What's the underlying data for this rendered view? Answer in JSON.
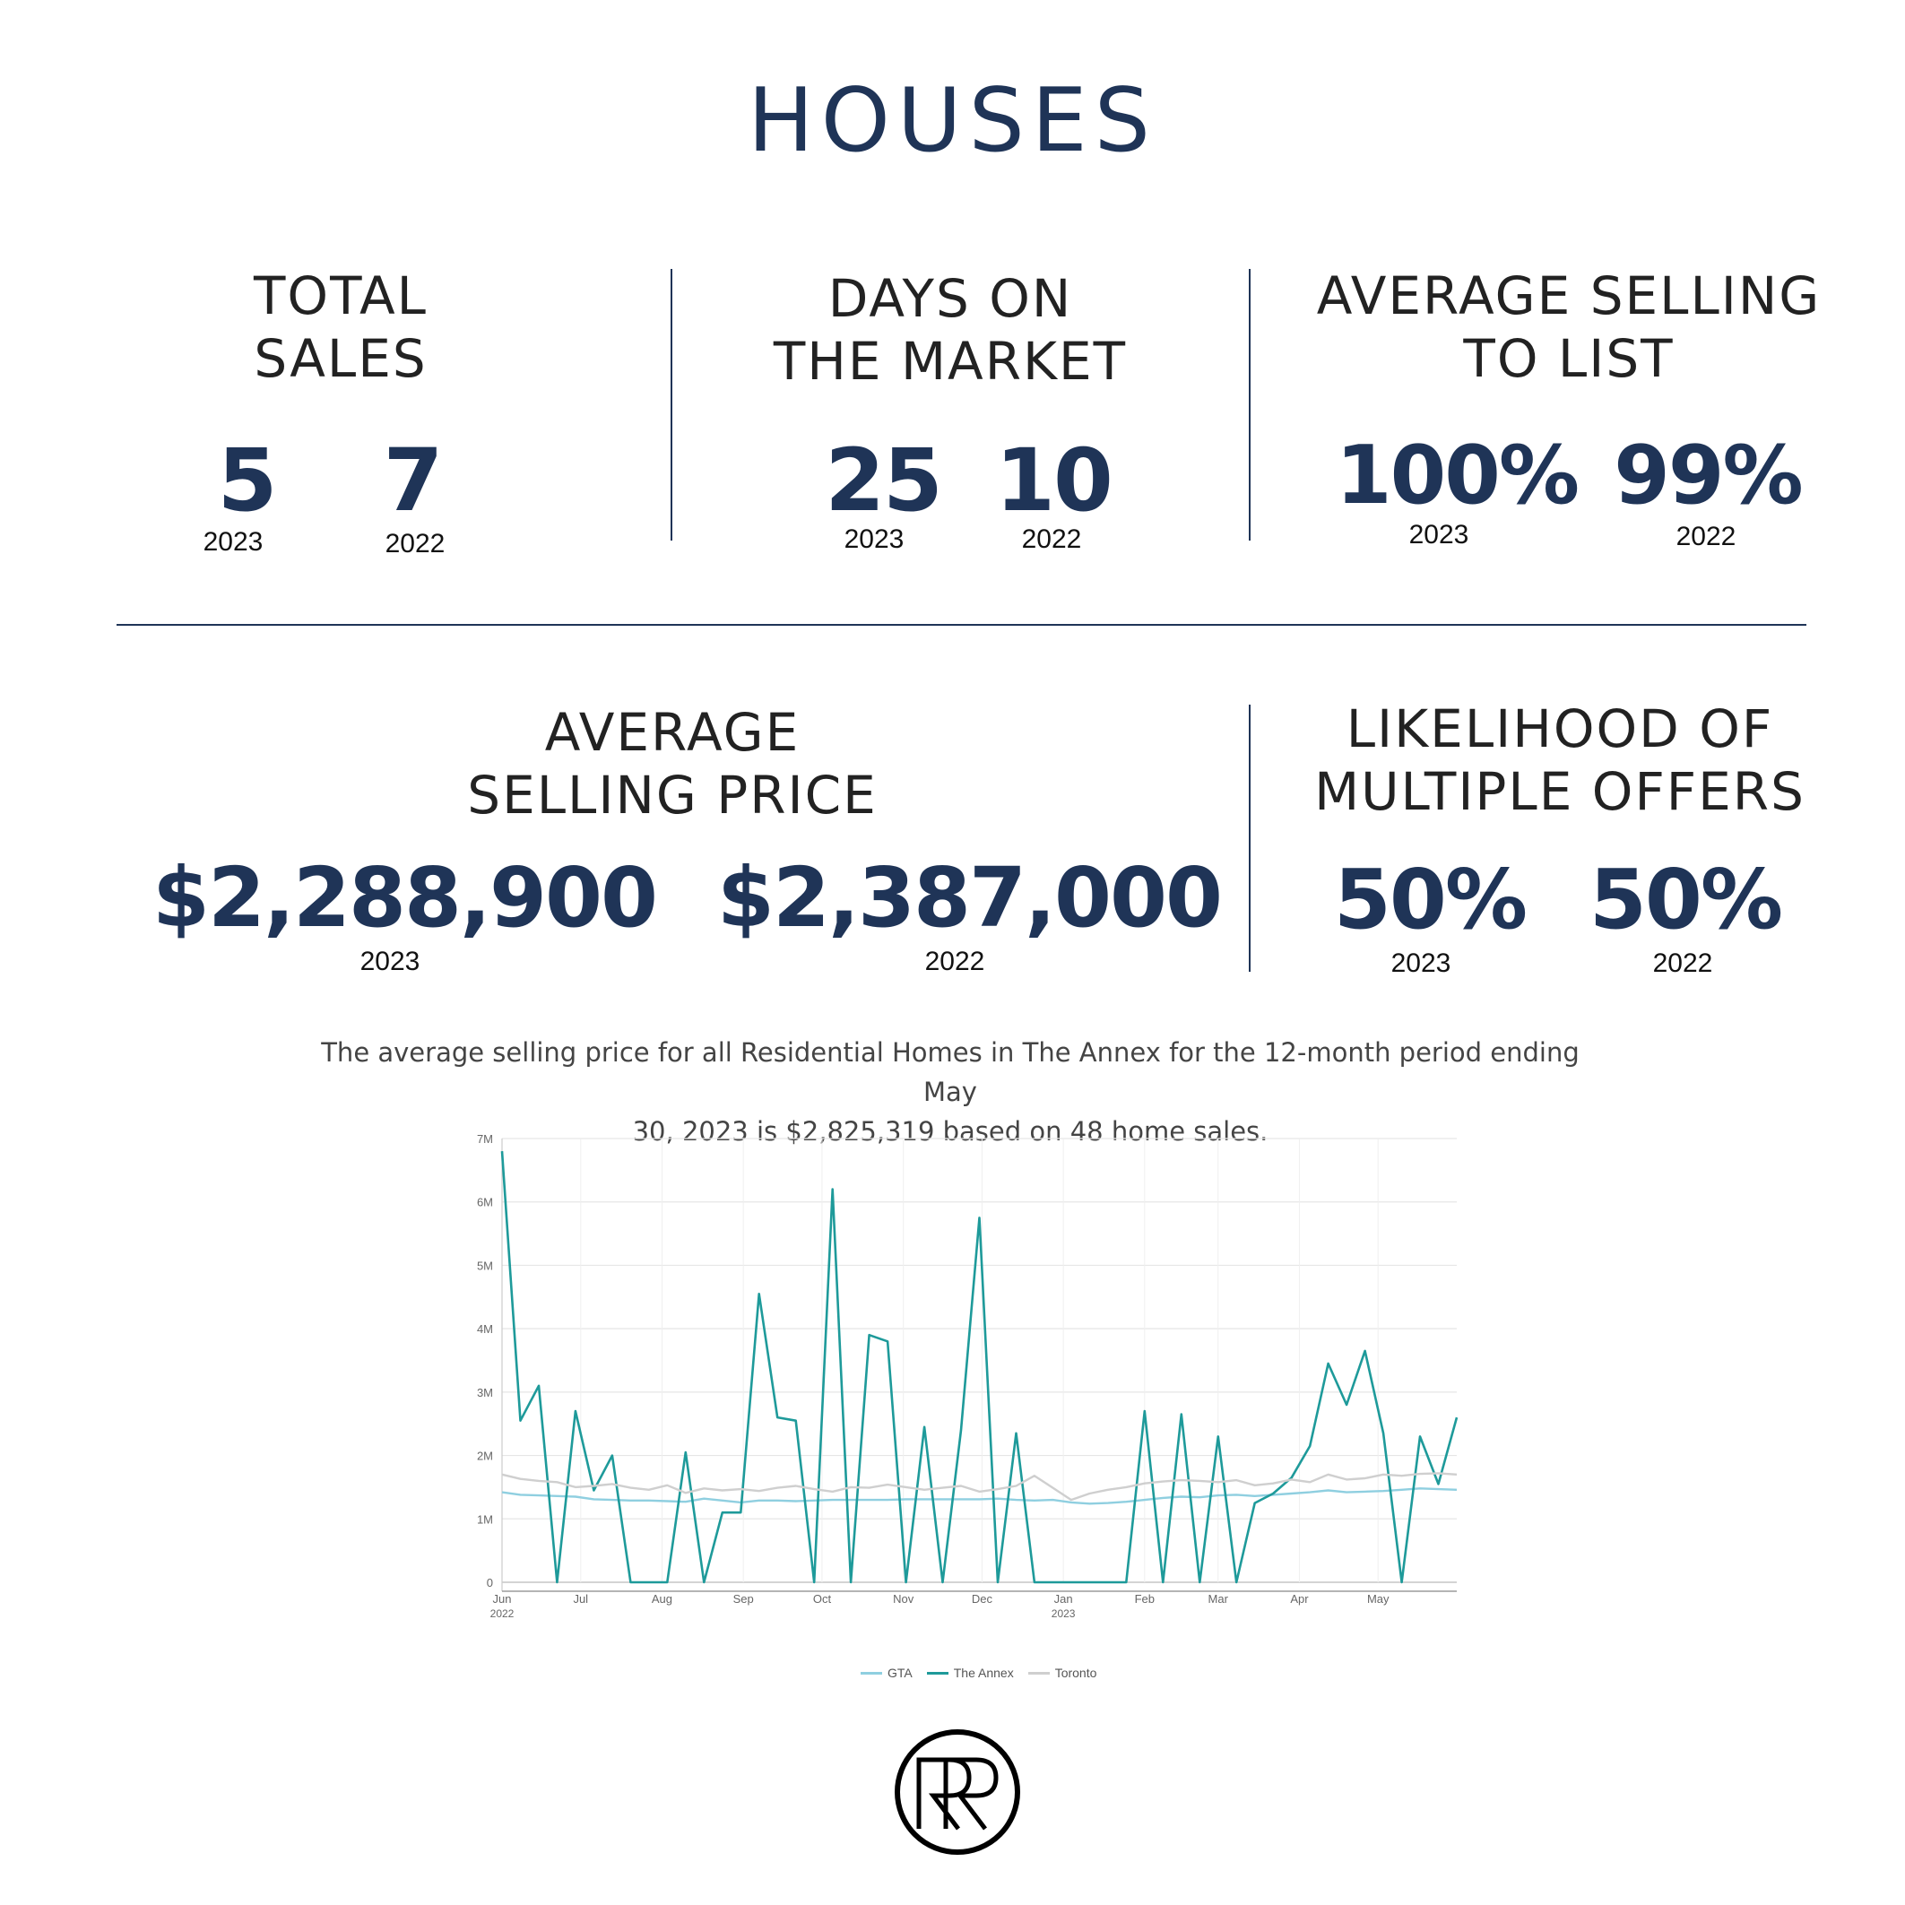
{
  "title": "HOUSES",
  "stats": {
    "total_sales": {
      "label_l1": "TOTAL",
      "label_l2": "SALES",
      "v2023": "5",
      "v2022": "7",
      "y1": "2023",
      "y2": "2022"
    },
    "days_on_market": {
      "label_l1": "DAYS ON",
      "label_l2": "THE MARKET",
      "v2023": "25",
      "v2022": "10",
      "y1": "2023",
      "y2": "2022"
    },
    "avg_selling_to_list": {
      "label_l1": "AVERAGE SELLING",
      "label_l2": "TO LIST",
      "v2023": "100%",
      "v2022": "99%",
      "y1": "2023",
      "y2": "2022"
    },
    "avg_selling_price": {
      "label_l1": "AVERAGE",
      "label_l2": "SELLING PRICE",
      "v2023": "$2,288,900",
      "v2022": "$2,387,000",
      "y1": "2023",
      "y2": "2022"
    },
    "multiple_offers": {
      "label_l1": "LIKELIHOOD OF",
      "label_l2": "MULTIPLE OFFERS",
      "v2023": "50%",
      "v2022": "50%",
      "y1": "2023",
      "y2": "2022"
    }
  },
  "caption": {
    "line1": "The average selling price for all Residential Homes in The Annex for the 12-month period ending May",
    "line2": "30, 2023 is $2,825,319 based on 48 home sales."
  },
  "chart_data": {
    "type": "line",
    "title": "",
    "xlabel": "",
    "ylabel": "",
    "ylim": [
      0,
      7000000
    ],
    "yticks": [
      0,
      1000000,
      2000000,
      3000000,
      4000000,
      5000000,
      6000000,
      7000000
    ],
    "ytick_labels": [
      "0",
      "1M",
      "2M",
      "3M",
      "4M",
      "5M",
      "6M",
      "7M"
    ],
    "xlim": [
      "2022-06-01",
      "2023-05-31"
    ],
    "xticks": [
      "2022-06-01",
      "2022-07-01",
      "2022-08-01",
      "2022-09-01",
      "2022-10-01",
      "2022-11-01",
      "2022-12-01",
      "2023-01-01",
      "2023-02-01",
      "2023-03-01",
      "2023-04-01",
      "2023-05-01"
    ],
    "xtick_labels": [
      "Jun",
      "Jul",
      "Aug",
      "Sep",
      "Oct",
      "Nov",
      "Dec",
      "Jan",
      "Feb",
      "Mar",
      "Apr",
      "May"
    ],
    "xtick_sublabels": {
      "2022-06-01": "2022",
      "2023-01-01": "2023"
    },
    "grid": true,
    "legend_position": "bottom",
    "series": [
      {
        "name": "GTA",
        "color": "#8fcfe0",
        "x": [
          "2022-06-01",
          "2022-06-08",
          "2022-06-15",
          "2022-06-22",
          "2022-06-29",
          "2022-07-06",
          "2022-07-13",
          "2022-07-20",
          "2022-07-27",
          "2022-08-03",
          "2022-08-10",
          "2022-08-17",
          "2022-08-24",
          "2022-08-31",
          "2022-09-07",
          "2022-09-14",
          "2022-09-21",
          "2022-09-28",
          "2022-10-05",
          "2022-10-12",
          "2022-10-19",
          "2022-10-26",
          "2022-11-02",
          "2022-11-09",
          "2022-11-16",
          "2022-11-23",
          "2022-11-30",
          "2022-12-07",
          "2022-12-14",
          "2022-12-21",
          "2022-12-28",
          "2023-01-04",
          "2023-01-11",
          "2023-01-18",
          "2023-01-25",
          "2023-02-01",
          "2023-02-08",
          "2023-02-15",
          "2023-02-22",
          "2023-03-01",
          "2023-03-08",
          "2023-03-15",
          "2023-03-22",
          "2023-03-29",
          "2023-04-05",
          "2023-04-12",
          "2023-04-19",
          "2023-04-26",
          "2023-05-03",
          "2023-05-10",
          "2023-05-17",
          "2023-05-24",
          "2023-05-31"
        ],
        "y": [
          1420000,
          1380000,
          1370000,
          1360000,
          1350000,
          1310000,
          1300000,
          1290000,
          1290000,
          1280000,
          1270000,
          1320000,
          1290000,
          1260000,
          1290000,
          1290000,
          1280000,
          1290000,
          1300000,
          1300000,
          1300000,
          1300000,
          1310000,
          1310000,
          1310000,
          1310000,
          1310000,
          1320000,
          1300000,
          1290000,
          1300000,
          1260000,
          1240000,
          1250000,
          1270000,
          1300000,
          1330000,
          1350000,
          1340000,
          1370000,
          1380000,
          1360000,
          1380000,
          1400000,
          1420000,
          1450000,
          1420000,
          1430000,
          1440000,
          1460000,
          1480000,
          1470000,
          1460000
        ]
      },
      {
        "name": "The Annex",
        "color": "#1e9a9a",
        "x": [
          "2022-06-01",
          "2022-06-08",
          "2022-06-15",
          "2022-06-22",
          "2022-06-29",
          "2022-07-06",
          "2022-07-13",
          "2022-07-20",
          "2022-07-27",
          "2022-08-03",
          "2022-08-10",
          "2022-08-17",
          "2022-08-24",
          "2022-08-31",
          "2022-09-07",
          "2022-09-14",
          "2022-09-21",
          "2022-09-28",
          "2022-10-05",
          "2022-10-12",
          "2022-10-19",
          "2022-10-26",
          "2022-11-02",
          "2022-11-09",
          "2022-11-16",
          "2022-11-23",
          "2022-11-30",
          "2022-12-07",
          "2022-12-14",
          "2022-12-21",
          "2022-12-28",
          "2023-01-04",
          "2023-01-11",
          "2023-01-18",
          "2023-01-25",
          "2023-02-01",
          "2023-02-08",
          "2023-02-15",
          "2023-02-22",
          "2023-03-01",
          "2023-03-08",
          "2023-03-15",
          "2023-03-22",
          "2023-03-29",
          "2023-04-05",
          "2023-04-12",
          "2023-04-19",
          "2023-04-26",
          "2023-05-03",
          "2023-05-10",
          "2023-05-17",
          "2023-05-24",
          "2023-05-31"
        ],
        "y": [
          6800000,
          2550000,
          3100000,
          0,
          2700000,
          1450000,
          2000000,
          0,
          0,
          0,
          2050000,
          0,
          1100000,
          1100000,
          4550000,
          2600000,
          2550000,
          0,
          6200000,
          0,
          3900000,
          3800000,
          0,
          2450000,
          0,
          2400000,
          5750000,
          0,
          2350000,
          0,
          0,
          0,
          0,
          0,
          0,
          2700000,
          0,
          2650000,
          0,
          2300000,
          0,
          1250000,
          1400000,
          1650000,
          2150000,
          3450000,
          2800000,
          3650000,
          2350000,
          0,
          2300000,
          1550000,
          2600000
        ]
      },
      {
        "name": "Toronto",
        "color": "#cfcfcf",
        "x": [
          "2022-06-01",
          "2022-06-08",
          "2022-06-15",
          "2022-06-22",
          "2022-06-29",
          "2022-07-06",
          "2022-07-13",
          "2022-07-20",
          "2022-07-27",
          "2022-08-03",
          "2022-08-10",
          "2022-08-17",
          "2022-08-24",
          "2022-08-31",
          "2022-09-07",
          "2022-09-14",
          "2022-09-21",
          "2022-09-28",
          "2022-10-05",
          "2022-10-12",
          "2022-10-19",
          "2022-10-26",
          "2022-11-02",
          "2022-11-09",
          "2022-11-16",
          "2022-11-23",
          "2022-11-30",
          "2022-12-07",
          "2022-12-14",
          "2022-12-21",
          "2022-12-28",
          "2023-01-04",
          "2023-01-11",
          "2023-01-18",
          "2023-01-25",
          "2023-02-01",
          "2023-02-08",
          "2023-02-15",
          "2023-02-22",
          "2023-03-01",
          "2023-03-08",
          "2023-03-15",
          "2023-03-22",
          "2023-03-29",
          "2023-04-05",
          "2023-04-12",
          "2023-04-19",
          "2023-04-26",
          "2023-05-03",
          "2023-05-10",
          "2023-05-17",
          "2023-05-24",
          "2023-05-31"
        ],
        "y": [
          1700000,
          1630000,
          1600000,
          1580000,
          1500000,
          1520000,
          1550000,
          1490000,
          1460000,
          1530000,
          1410000,
          1480000,
          1450000,
          1470000,
          1440000,
          1490000,
          1520000,
          1470000,
          1430000,
          1500000,
          1490000,
          1540000,
          1500000,
          1460000,
          1490000,
          1520000,
          1430000,
          1470000,
          1520000,
          1680000,
          1490000,
          1300000,
          1400000,
          1460000,
          1500000,
          1560000,
          1590000,
          1610000,
          1600000,
          1580000,
          1610000,
          1530000,
          1560000,
          1620000,
          1580000,
          1700000,
          1620000,
          1640000,
          1700000,
          1680000,
          1710000,
          1720000,
          1700000
        ]
      }
    ]
  },
  "logo": {
    "text": "RR",
    "name": "brand logo"
  }
}
